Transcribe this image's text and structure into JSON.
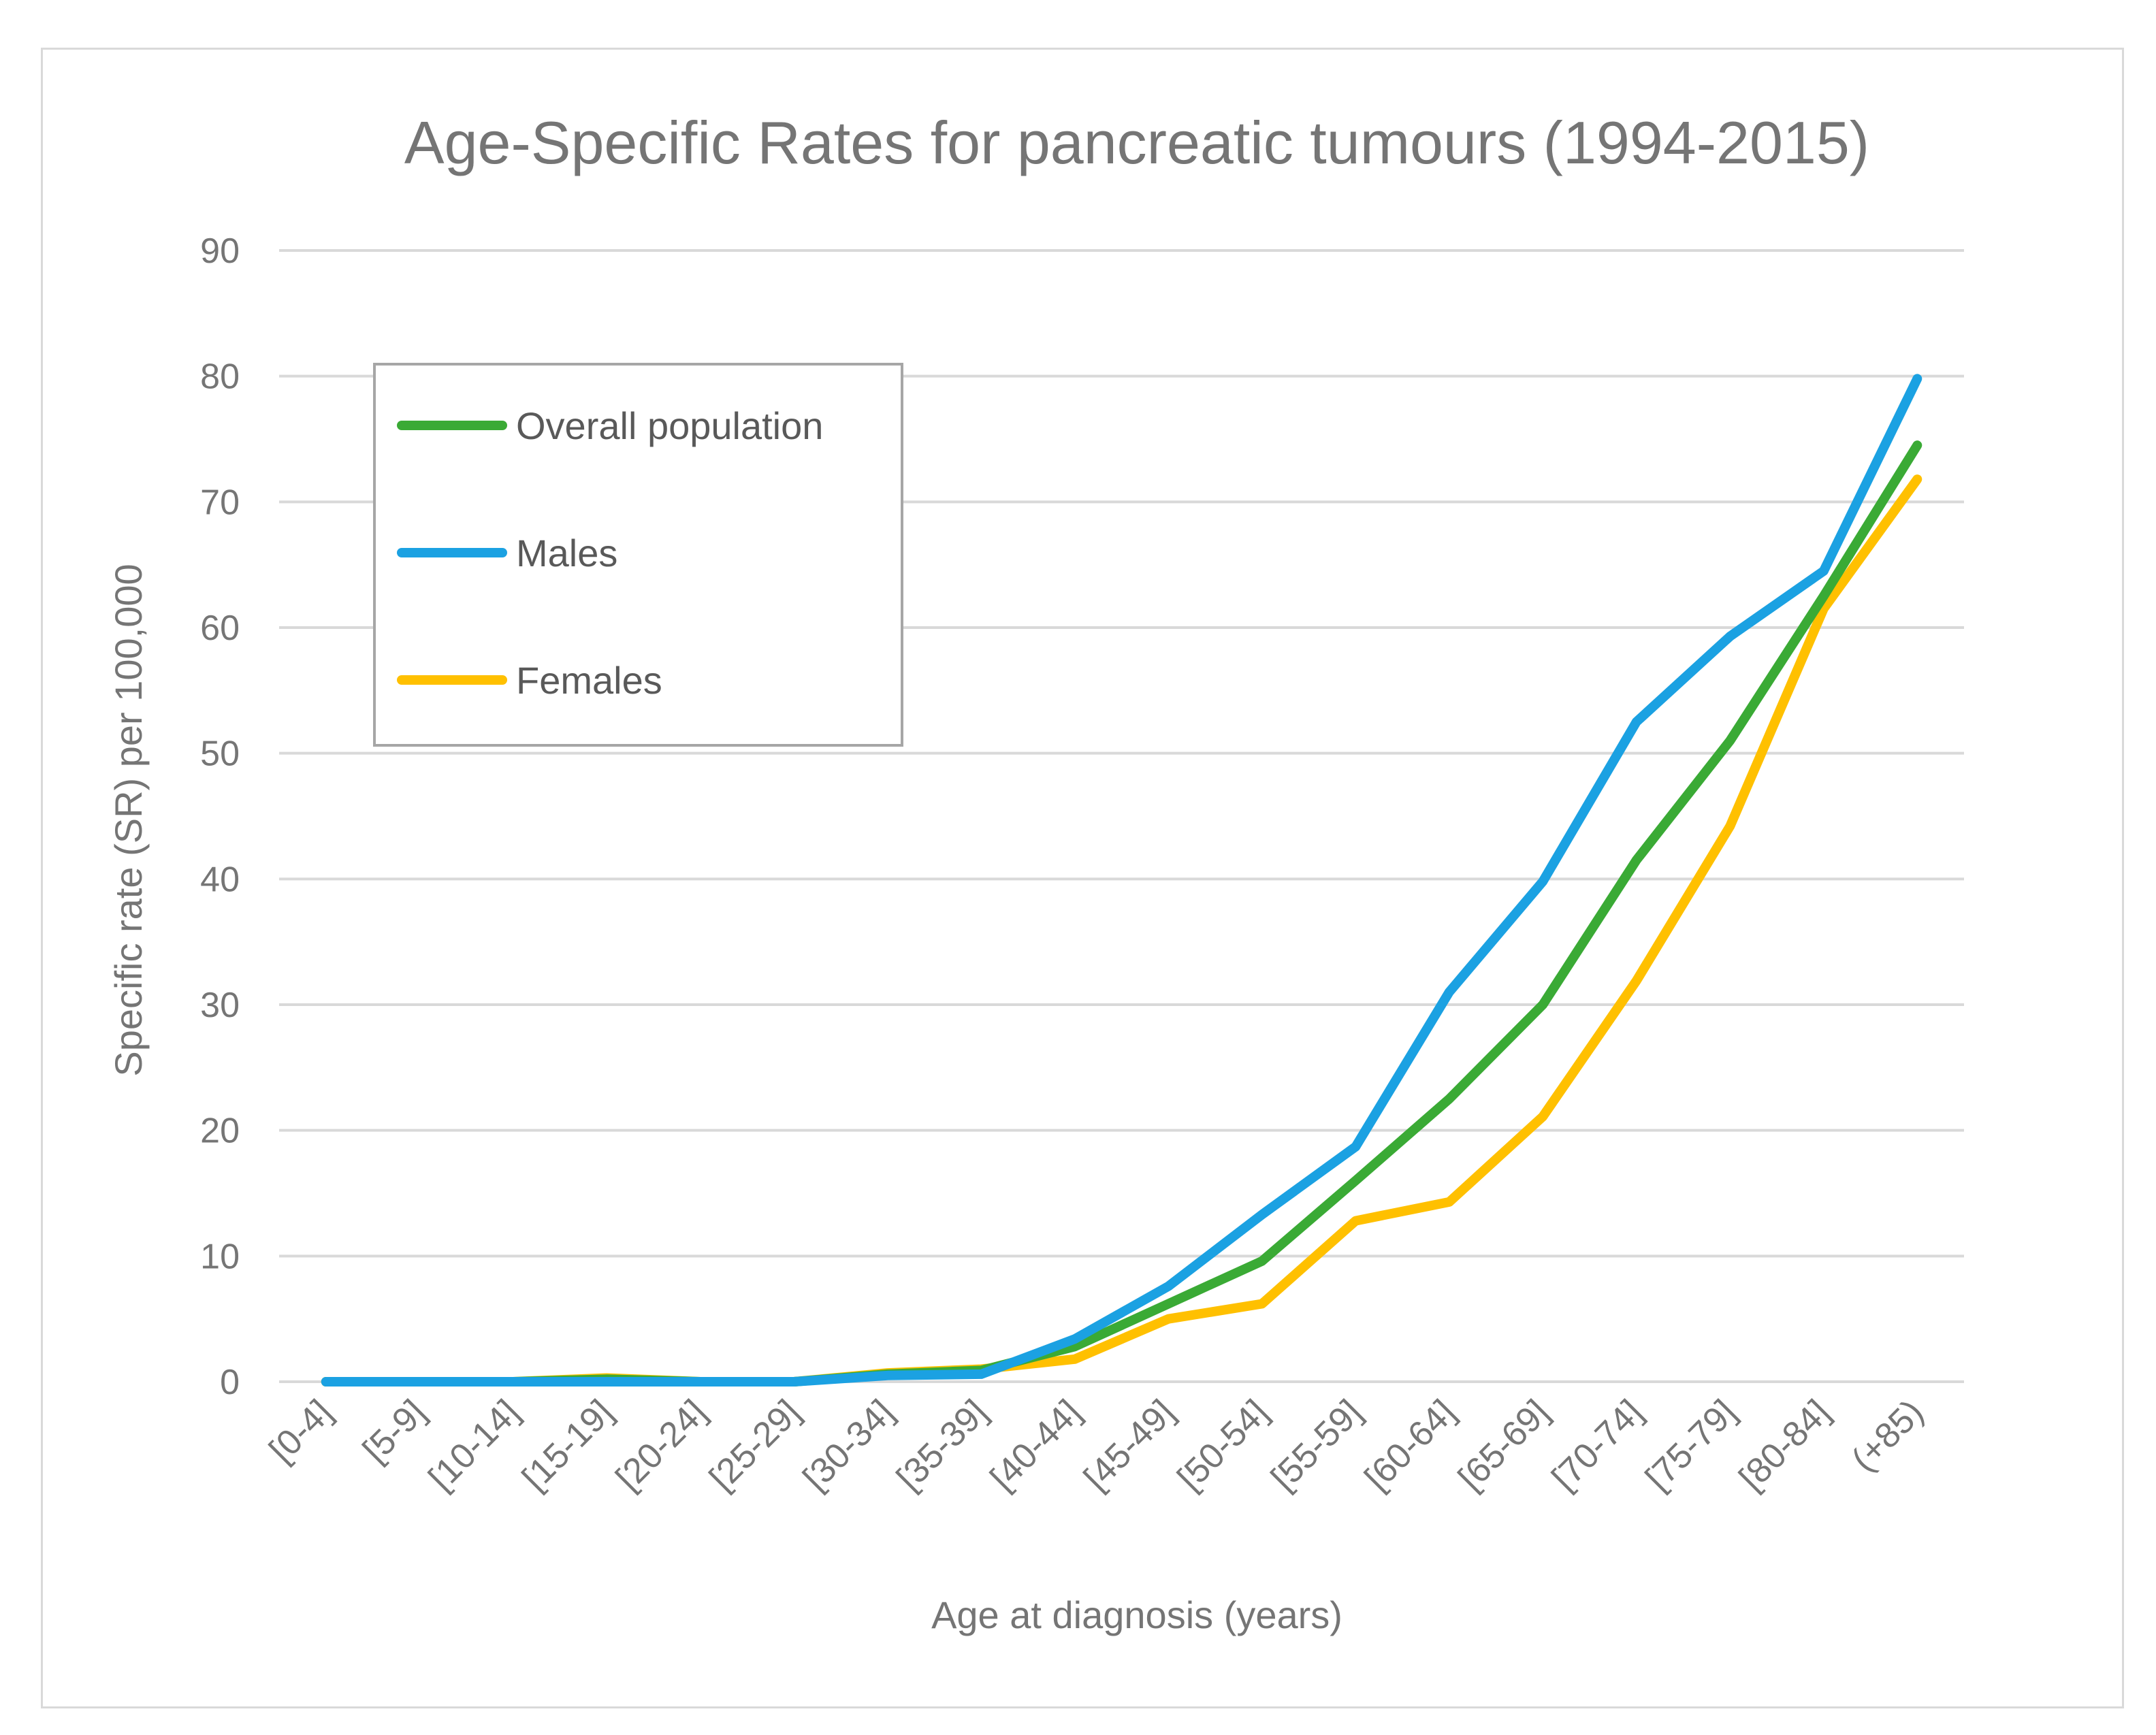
{
  "chart_data": {
    "type": "line",
    "title": "Age-Specific Rates for pancreatic tumours (1994-2015)",
    "xlabel": "Age at diagnosis (years)",
    "ylabel": "Specific rate (SR) per 100,000",
    "ylim": [
      0,
      90
    ],
    "ytick_step": 10,
    "yticks": [
      "0",
      "10",
      "20",
      "30",
      "40",
      "50",
      "60",
      "70",
      "80",
      "90"
    ],
    "grid": true,
    "legend_position": "top-left",
    "categories": [
      "[0-4]",
      "[5-9]",
      "[10-14]",
      "[15-19]",
      "[20-24]",
      "[25-29]",
      "[30-34]",
      "[35-39]",
      "[40-44]",
      "[45-49]",
      "[50-54]",
      "[55-59]",
      "[60-64]",
      "[65-69]",
      "[70-74]",
      "[75-79]",
      "[80-84]",
      "(+85)"
    ],
    "series": [
      {
        "name": "Overall population",
        "color": "#3aaa35",
        "values": [
          0,
          0,
          0,
          0.2,
          0,
          0,
          0.6,
          0.9,
          2.8,
          6.2,
          9.6,
          16,
          22.5,
          30,
          41.5,
          51,
          62.5,
          74.5
        ]
      },
      {
        "name": "Males",
        "color": "#1ba1e2",
        "values": [
          0,
          0,
          0,
          0,
          0,
          0,
          0.5,
          0.6,
          3.4,
          7.6,
          13.3,
          18.7,
          31,
          39.8,
          52.5,
          59.3,
          64.5,
          79.8
        ]
      },
      {
        "name": "Females",
        "color": "#ffc000",
        "values": [
          0,
          0,
          0,
          0.3,
          0,
          0,
          0.7,
          1.0,
          1.8,
          5.0,
          6.2,
          12.8,
          14.3,
          21.1,
          31.9,
          44.2,
          61.5,
          71.8
        ]
      }
    ]
  }
}
